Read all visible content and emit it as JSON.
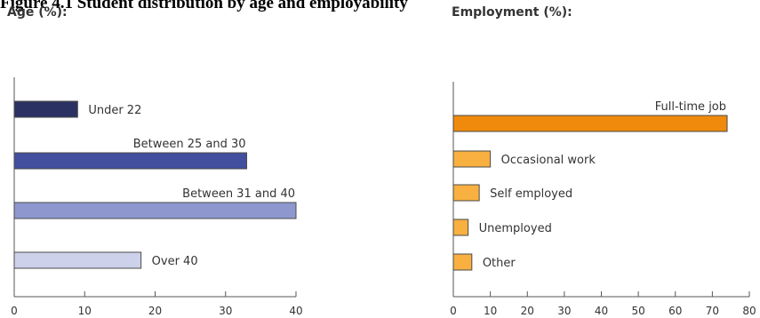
{
  "figure_title": "Figure 4.1 Student distribution by age and employability",
  "chart_data": [
    {
      "type": "bar",
      "orientation": "horizontal",
      "title": "Age (%):",
      "categories": [
        "Under 22",
        "Between 25 and 30",
        "Between 31 and 40",
        "Over 40"
      ],
      "values": [
        9,
        33,
        40,
        18
      ],
      "colors": [
        "#2b3163",
        "#414f9e",
        "#8e98cf",
        "#cdd2ea"
      ],
      "xlim": [
        0,
        40
      ],
      "xticks": [
        0,
        10,
        20,
        30,
        40
      ],
      "label_position": [
        "right",
        "above",
        "above",
        "right"
      ],
      "grid": false
    },
    {
      "type": "bar",
      "orientation": "horizontal",
      "title": "Employment (%):",
      "categories": [
        "Full-time job",
        "Occasional work",
        "Self employed",
        "Unemployed",
        "Other"
      ],
      "values": [
        74,
        10,
        7,
        4,
        5
      ],
      "colors": [
        "#f08a0c",
        "#f8b040",
        "#f8b040",
        "#f8b040",
        "#f8b040"
      ],
      "xlim": [
        0,
        80
      ],
      "xticks": [
        0,
        10,
        20,
        30,
        40,
        50,
        60,
        70,
        80
      ],
      "label_position": [
        "above",
        "right",
        "right",
        "right",
        "right"
      ],
      "grid": false
    }
  ]
}
